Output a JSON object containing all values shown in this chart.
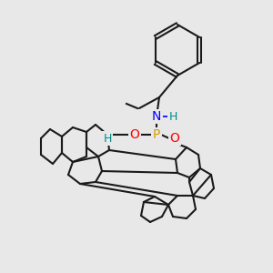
{
  "bg_color": "#e8e8e8",
  "atom_colors": {
    "O": "#ff0000",
    "P": "#d4a000",
    "N": "#0000ff",
    "H_label": "#008b8b",
    "C": "#000000"
  },
  "bond_color": "#1a1a1a",
  "bond_lw": 1.5,
  "fig_size": [
    3.0,
    3.0
  ],
  "dpi": 100
}
